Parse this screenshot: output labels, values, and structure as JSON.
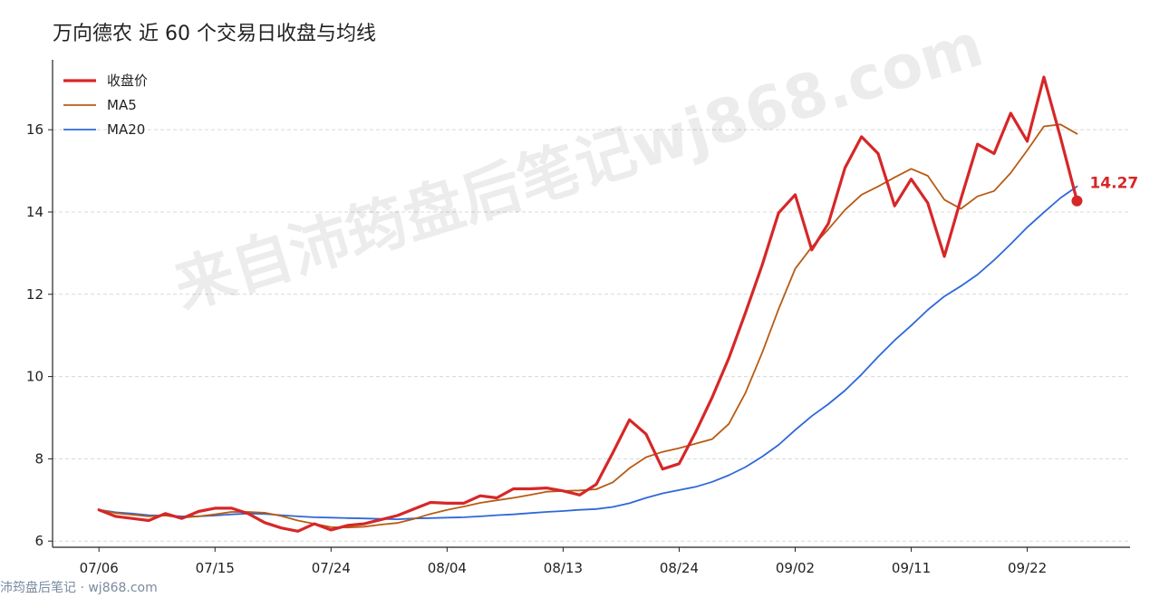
{
  "chart_data": {
    "type": "line",
    "title": "万向德农 近 60 个交易日收盘与均线",
    "xlabel": "",
    "ylabel": "",
    "x_tick_labels": [
      "07/06",
      "07/15",
      "07/24",
      "08/04",
      "08/13",
      "08/24",
      "09/02",
      "09/11",
      "09/22"
    ],
    "x_tick_indices": [
      0,
      7,
      14,
      21,
      28,
      35,
      42,
      49,
      56
    ],
    "y_ticks": [
      6,
      8,
      10,
      12,
      14,
      16
    ],
    "ylim": [
      5.85,
      17.7
    ],
    "xlim": [
      -2.8,
      62.2
    ],
    "grid": "horizontal dashed",
    "legend_position": "top-left",
    "last_value_label": "14.27",
    "series": [
      {
        "name": "收盘价",
        "color": "#d62728",
        "values": [
          6.76,
          6.6,
          6.55,
          6.5,
          6.67,
          6.55,
          6.72,
          6.8,
          6.8,
          6.67,
          6.45,
          6.32,
          6.24,
          6.42,
          6.27,
          6.38,
          6.42,
          6.52,
          6.62,
          6.78,
          6.94,
          6.92,
          6.92,
          7.1,
          7.05,
          7.27,
          7.27,
          7.29,
          7.22,
          7.12,
          7.38,
          8.15,
          8.95,
          8.6,
          7.75,
          7.88,
          8.65,
          9.5,
          10.45,
          11.55,
          12.7,
          13.98,
          14.42,
          13.08,
          13.72,
          15.07,
          15.83,
          15.42,
          14.15,
          14.8,
          14.22,
          12.92,
          14.32,
          15.65,
          15.42,
          16.4,
          15.72,
          17.28,
          15.82,
          14.27
        ]
      },
      {
        "name": "MA5",
        "color": "#b85b14",
        "values": [
          6.76,
          6.68,
          6.64,
          6.6,
          6.62,
          6.57,
          6.6,
          6.65,
          6.71,
          6.71,
          6.69,
          6.61,
          6.5,
          6.42,
          6.34,
          6.33,
          6.35,
          6.4,
          6.44,
          6.54,
          6.66,
          6.76,
          6.84,
          6.93,
          6.99,
          7.05,
          7.12,
          7.2,
          7.22,
          7.23,
          7.26,
          7.43,
          7.77,
          8.04,
          8.17,
          8.26,
          8.37,
          8.48,
          8.85,
          9.6,
          10.57,
          11.64,
          12.62,
          13.15,
          13.58,
          14.05,
          14.42,
          14.62,
          14.84,
          15.05,
          14.88,
          14.3,
          14.08,
          14.38,
          14.51,
          14.95,
          15.5,
          16.08,
          16.13,
          15.9
        ]
      },
      {
        "name": "MA20",
        "color": "#2f68d8",
        "values": [
          6.76,
          6.7,
          6.67,
          6.63,
          6.62,
          6.6,
          6.6,
          6.62,
          6.65,
          6.67,
          6.66,
          6.63,
          6.6,
          6.58,
          6.57,
          6.56,
          6.55,
          6.54,
          6.53,
          6.55,
          6.56,
          6.57,
          6.58,
          6.6,
          6.63,
          6.65,
          6.68,
          6.71,
          6.73,
          6.76,
          6.78,
          6.83,
          6.92,
          7.05,
          7.16,
          7.24,
          7.32,
          7.44,
          7.6,
          7.8,
          8.05,
          8.34,
          8.7,
          9.04,
          9.33,
          9.66,
          10.05,
          10.48,
          10.88,
          11.24,
          11.62,
          11.95,
          12.2,
          12.48,
          12.83,
          13.22,
          13.63,
          13.99,
          14.34,
          14.62
        ]
      }
    ]
  },
  "watermark": {
    "main": "来自沛筠盘后笔记wj868.com",
    "footer": "沛筠盘后笔记 · wj868.com"
  }
}
